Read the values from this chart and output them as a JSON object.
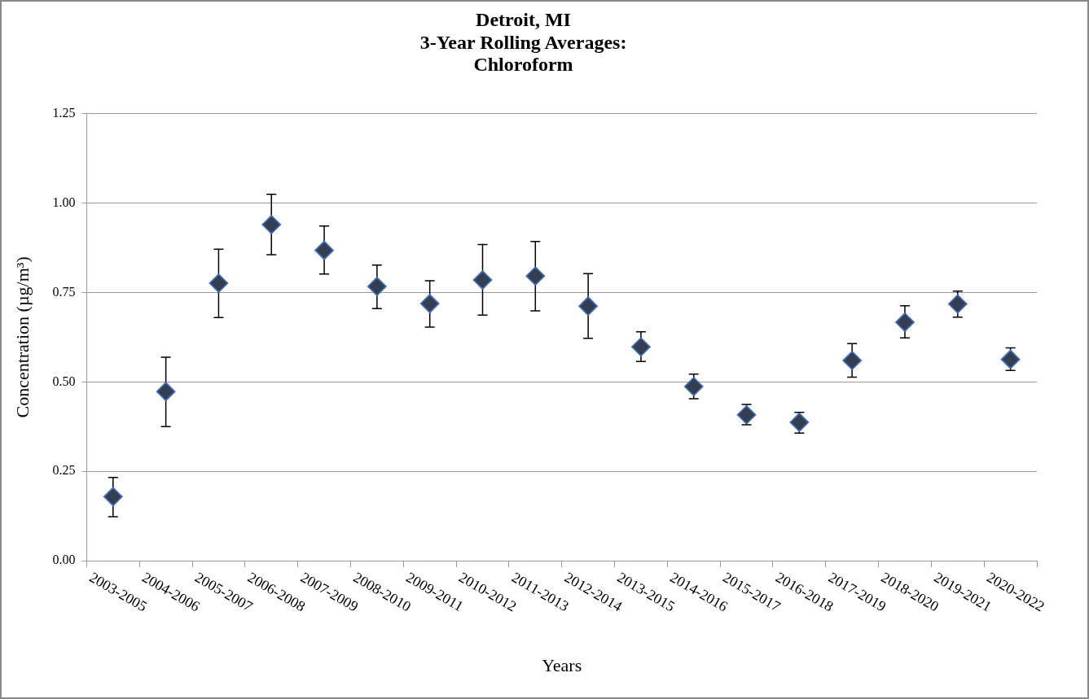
{
  "chart_data": {
    "type": "scatter",
    "title": "Detroit, MI\n3-Year Rolling Averages:\nChloroform",
    "xlabel": "Years",
    "ylabel": "Concentration (µg/m³)",
    "categories": [
      "2003-2005",
      "2004-2006",
      "2005-2007",
      "2006-2008",
      "2007-2009",
      "2008-2010",
      "2009-2011",
      "2010-2012",
      "2011-2013",
      "2012-2014",
      "2013-2015",
      "2014-2016",
      "2015-2017",
      "2016-2018",
      "2017-2019",
      "2018-2020",
      "2019-2021",
      "2020-2022"
    ],
    "values": [
      0.179,
      0.473,
      0.776,
      0.94,
      0.868,
      0.767,
      0.719,
      0.785,
      0.796,
      0.712,
      0.598,
      0.487,
      0.408,
      0.387,
      0.56,
      0.667,
      0.718,
      0.563
    ],
    "errors": [
      [
        0.123,
        0.233
      ],
      [
        0.375,
        0.569
      ],
      [
        0.68,
        0.871
      ],
      [
        0.856,
        1.025
      ],
      [
        0.802,
        0.936
      ],
      [
        0.705,
        0.827
      ],
      [
        0.653,
        0.783
      ],
      [
        0.687,
        0.884
      ],
      [
        0.699,
        0.893
      ],
      [
        0.622,
        0.803
      ],
      [
        0.557,
        0.64
      ],
      [
        0.453,
        0.522
      ],
      [
        0.38,
        0.437
      ],
      [
        0.357,
        0.415
      ],
      [
        0.513,
        0.607
      ],
      [
        0.623,
        0.713
      ],
      [
        0.681,
        0.754
      ],
      [
        0.532,
        0.595
      ]
    ],
    "color": "#333f50",
    "marker": "diamond",
    "grid": "y",
    "legend": false,
    "ylim": [
      0,
      1.25
    ],
    "yticks": [
      {
        "value": 0,
        "label": "0.00"
      },
      {
        "value": 0.25,
        "label": "0.25"
      },
      {
        "value": 0.5,
        "label": "0.50"
      },
      {
        "value": 0.75,
        "label": "0.75"
      },
      {
        "value": 1,
        "label": "1.00"
      },
      {
        "value": 1.25,
        "label": "1.25"
      }
    ]
  }
}
